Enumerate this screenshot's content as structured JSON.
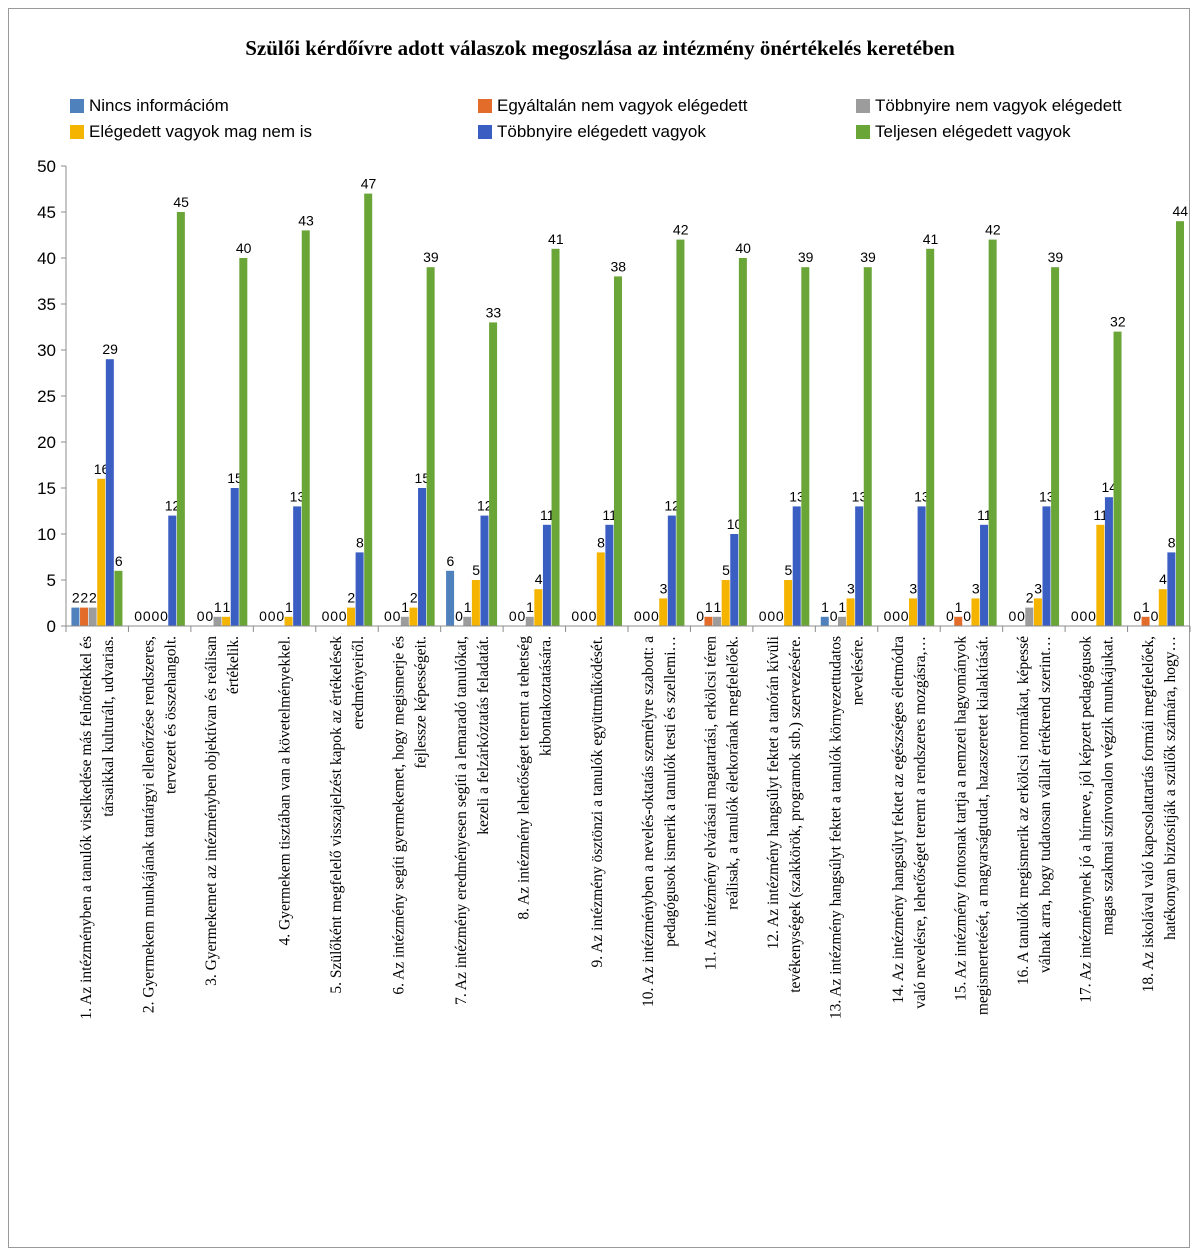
{
  "chart_data": {
    "type": "bar",
    "title": "Szülői kérdőívre adott válaszok megoszlása az intézmény önértékelés keretében",
    "ylim": [
      0,
      50
    ],
    "yticks": [
      0,
      5,
      10,
      15,
      20,
      25,
      30,
      35,
      40,
      45,
      50
    ],
    "grid": false,
    "legend_position": "top",
    "categories": [
      [
        "1. Az intézményben a tanulók viselkedése más felnőttekkel és",
        "társaikkal kulturált, udvarias."
      ],
      [
        "2. Gyermekem munkájának tantárgyi ellenőrzése rendszeres,",
        "tervezett és összehangolt."
      ],
      [
        "3. Gyermekemet az intézményben objektívan és reálisan",
        "értékelik."
      ],
      [
        "4. Gyermekem tisztában van a követelményekkel."
      ],
      [
        "5. Szülőként megfelelő visszajelzést kapok az értékelések",
        "eredményeiről."
      ],
      [
        "6. Az intézmény segíti gyermekemet, hogy megismerje és",
        "fejlessze képességeit."
      ],
      [
        "7. Az intézmény eredményesen segíti a lemaradó tanulókat,",
        "kezeli a felzárkóztatás feladatát."
      ],
      [
        "8. Az intézmény lehetőséget teremt a tehetség",
        "kibontakoztatására."
      ],
      [
        "9. Az intézmény ösztönzi a tanulók együttműködését."
      ],
      [
        "10. Az intézményben a nevelés-oktatás személyre szabott: a",
        "pedagógusok ismerik a tanulók testi és szellemi…"
      ],
      [
        "11. Az intézmény elvárásai magatartási, erkölcsi téren",
        "reálisak, a tanulók életkorának megfelelőek."
      ],
      [
        "12. Az intézmény hangsúlyt fektet a tanórán kívüli",
        "tevékenységek (szakkörök, programok stb.) szervezésére."
      ],
      [
        "13. Az intézmény hangsúlyt fektet a tanulók környezettudatos",
        "nevelésére."
      ],
      [
        "14. Az intézmény hangsúlyt fektet az egészséges életmódra",
        "való nevelésre, lehetőséget teremt a rendszeres mozgásra,…"
      ],
      [
        "15. Az intézmény fontosnak tartja a nemzeti hagyományok",
        "megismertetését, a magyarságtudat, hazaszeretet kialakítását."
      ],
      [
        "16. A tanulók megismerik az erkölcsi normákat, képessé",
        "válnak arra, hogy tudatosan vállalt értékrend szerint…"
      ],
      [
        "17. Az intézménynek jó a hírneve, jól képzett pedagógusok",
        "magas szakmai színvonalon végzik munkájukat."
      ],
      [
        "18. Az iskolával való kapcsolattartás formái megfelelőek,",
        "hatékonyan biztosítják a szülők számára, hogy…"
      ]
    ],
    "series": [
      {
        "name": "Nincs információm",
        "color": "#4f81bd",
        "values": [
          2,
          0,
          0,
          0,
          0,
          0,
          6,
          0,
          0,
          0,
          0,
          0,
          1,
          0,
          0,
          0,
          0,
          0
        ]
      },
      {
        "name": "Egyáltalán nem vagyok elégedett",
        "color": "#e46c2a",
        "values": [
          2,
          0,
          0,
          0,
          0,
          0,
          0,
          0,
          0,
          0,
          1,
          0,
          0,
          0,
          1,
          0,
          0,
          1
        ]
      },
      {
        "name": "Többnyire nem vagyok elégedett",
        "color": "#9c9c9c",
        "values": [
          2,
          0,
          1,
          0,
          0,
          1,
          1,
          1,
          0,
          0,
          1,
          0,
          1,
          0,
          0,
          2,
          0,
          0
        ]
      },
      {
        "name": "Elégedett vagyok mag nem is",
        "color": "#f4b400",
        "values": [
          16,
          0,
          1,
          1,
          2,
          2,
          5,
          4,
          8,
          3,
          5,
          5,
          3,
          3,
          3,
          3,
          11,
          4
        ]
      },
      {
        "name": "Többnyire elégedett vagyok",
        "color": "#3a5ec2",
        "values": [
          29,
          12,
          15,
          13,
          8,
          15,
          12,
          11,
          11,
          12,
          10,
          13,
          13,
          13,
          11,
          13,
          14,
          8
        ]
      },
      {
        "name": "Teljesen elégedett vagyok",
        "color": "#6aa537",
        "values": [
          6,
          45,
          40,
          43,
          47,
          39,
          33,
          41,
          38,
          42,
          40,
          39,
          39,
          41,
          42,
          39,
          32,
          44
        ]
      }
    ]
  }
}
